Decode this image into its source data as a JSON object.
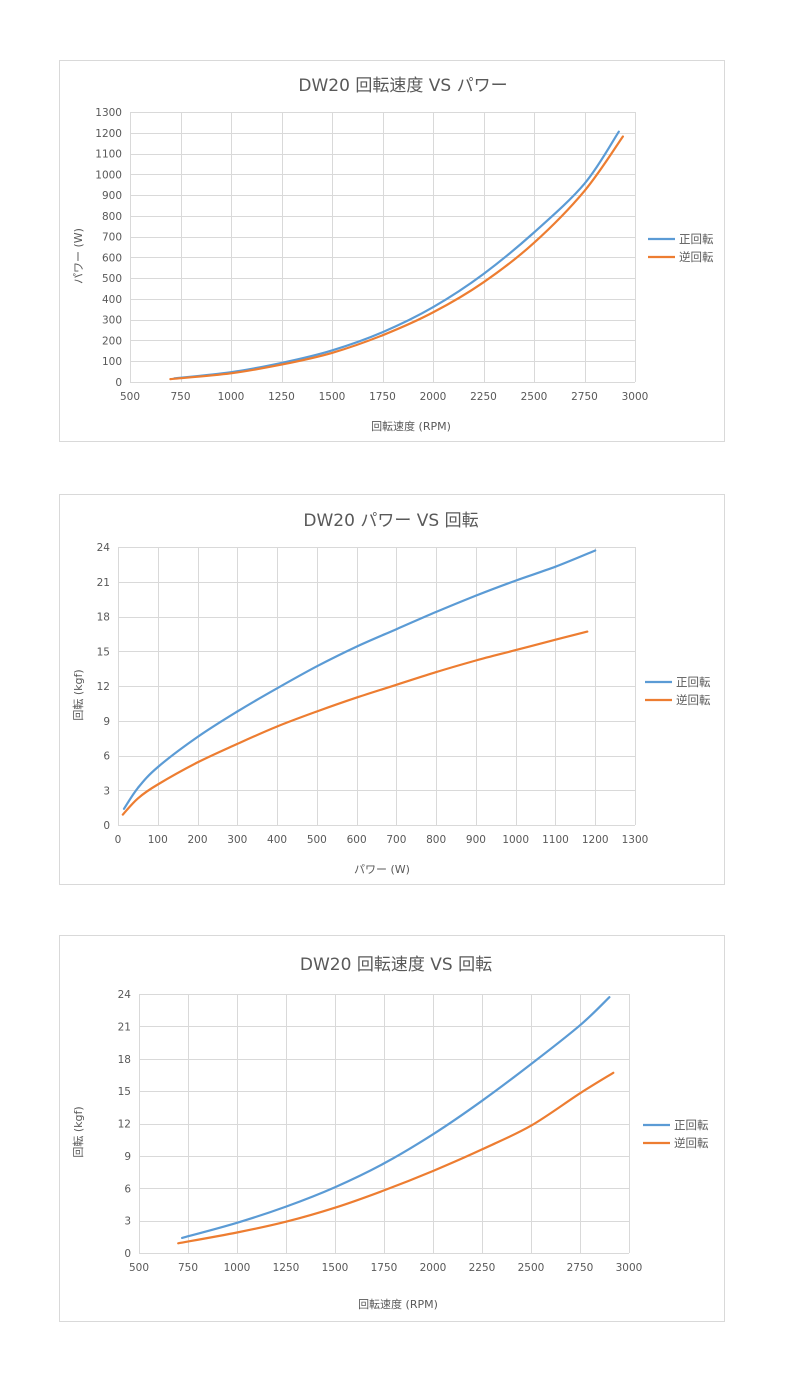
{
  "colors": {
    "series1": "#5b9bd5",
    "series2": "#ed7d31",
    "grid": "#d9d9d9",
    "text": "#595959"
  },
  "chart_data": [
    {
      "type": "line",
      "title": "DW20 回転速度 VS パワー",
      "xlabel": "回転速度 (RPM)",
      "ylabel": "パワー (W)",
      "xlim": [
        500,
        3000
      ],
      "ylim": [
        0,
        1300
      ],
      "xticks": [
        500,
        750,
        1000,
        1250,
        1500,
        1750,
        2000,
        2250,
        2500,
        2750,
        3000
      ],
      "yticks": [
        0,
        100,
        200,
        300,
        400,
        500,
        600,
        700,
        800,
        900,
        1000,
        1100,
        1200,
        1300
      ],
      "grid": true,
      "legend": "right",
      "series": [
        {
          "name": "正回転",
          "color": "#5b9bd5",
          "points": [
            [
              720,
              18
            ],
            [
              1000,
              47
            ],
            [
              1250,
              92
            ],
            [
              1500,
              152
            ],
            [
              1750,
              240
            ],
            [
              2000,
              360
            ],
            [
              2250,
              520
            ],
            [
              2500,
              720
            ],
            [
              2750,
              955
            ],
            [
              2920,
              1205
            ]
          ]
        },
        {
          "name": "逆回転",
          "color": "#ed7d31",
          "points": [
            [
              700,
              14
            ],
            [
              1000,
              42
            ],
            [
              1250,
              84
            ],
            [
              1500,
              140
            ],
            [
              1750,
              225
            ],
            [
              2000,
              335
            ],
            [
              2250,
              480
            ],
            [
              2500,
              670
            ],
            [
              2750,
              920
            ],
            [
              2940,
              1182
            ]
          ]
        }
      ]
    },
    {
      "type": "line",
      "title": "DW20 パワー VS 回転",
      "xlabel": "パワー (W)",
      "ylabel": "回転 (kgf)",
      "xlim": [
        0,
        1300
      ],
      "ylim": [
        0,
        24
      ],
      "xticks": [
        0,
        100,
        200,
        300,
        400,
        500,
        600,
        700,
        800,
        900,
        1000,
        1100,
        1200,
        1300
      ],
      "yticks": [
        0,
        3,
        6,
        9,
        12,
        15,
        18,
        21,
        24
      ],
      "grid": true,
      "legend": "right",
      "series": [
        {
          "name": "正回転",
          "color": "#5b9bd5",
          "points": [
            [
              15,
              1.4
            ],
            [
              50,
              3.2
            ],
            [
              100,
              5.0
            ],
            [
              200,
              7.6
            ],
            [
              300,
              9.8
            ],
            [
              400,
              11.8
            ],
            [
              500,
              13.7
            ],
            [
              600,
              15.4
            ],
            [
              700,
              16.9
            ],
            [
              800,
              18.4
            ],
            [
              900,
              19.8
            ],
            [
              1000,
              21.1
            ],
            [
              1100,
              22.3
            ],
            [
              1200,
              23.7
            ]
          ]
        },
        {
          "name": "逆回転",
          "color": "#ed7d31",
          "points": [
            [
              12,
              0.9
            ],
            [
              50,
              2.3
            ],
            [
              100,
              3.5
            ],
            [
              200,
              5.4
            ],
            [
              300,
              7.0
            ],
            [
              400,
              8.5
            ],
            [
              500,
              9.8
            ],
            [
              600,
              11.0
            ],
            [
              700,
              12.1
            ],
            [
              800,
              13.2
            ],
            [
              900,
              14.2
            ],
            [
              1000,
              15.1
            ],
            [
              1100,
              16.0
            ],
            [
              1180,
              16.7
            ]
          ]
        }
      ]
    },
    {
      "type": "line",
      "title": "DW20 回転速度 VS 回転",
      "xlabel": "回転速度 (RPM)",
      "ylabel": "回転 (kgf)",
      "xlim": [
        500,
        3000
      ],
      "ylim": [
        0,
        24
      ],
      "xticks": [
        500,
        750,
        1000,
        1250,
        1500,
        1750,
        2000,
        2250,
        2500,
        2750,
        3000
      ],
      "yticks": [
        0,
        3,
        6,
        9,
        12,
        15,
        18,
        21,
        24
      ],
      "grid": true,
      "legend": "right",
      "series": [
        {
          "name": "正回転",
          "color": "#5b9bd5",
          "points": [
            [
              720,
              1.4
            ],
            [
              1000,
              2.8
            ],
            [
              1250,
              4.3
            ],
            [
              1500,
              6.1
            ],
            [
              1750,
              8.3
            ],
            [
              2000,
              11.0
            ],
            [
              2250,
              14.1
            ],
            [
              2500,
              17.5
            ],
            [
              2750,
              21.1
            ],
            [
              2900,
              23.7
            ]
          ]
        },
        {
          "name": "逆回転",
          "color": "#ed7d31",
          "points": [
            [
              700,
              0.9
            ],
            [
              1000,
              1.9
            ],
            [
              1250,
              2.9
            ],
            [
              1500,
              4.2
            ],
            [
              1750,
              5.8
            ],
            [
              2000,
              7.6
            ],
            [
              2250,
              9.6
            ],
            [
              2500,
              11.8
            ],
            [
              2750,
              14.8
            ],
            [
              2920,
              16.7
            ]
          ]
        }
      ]
    }
  ]
}
